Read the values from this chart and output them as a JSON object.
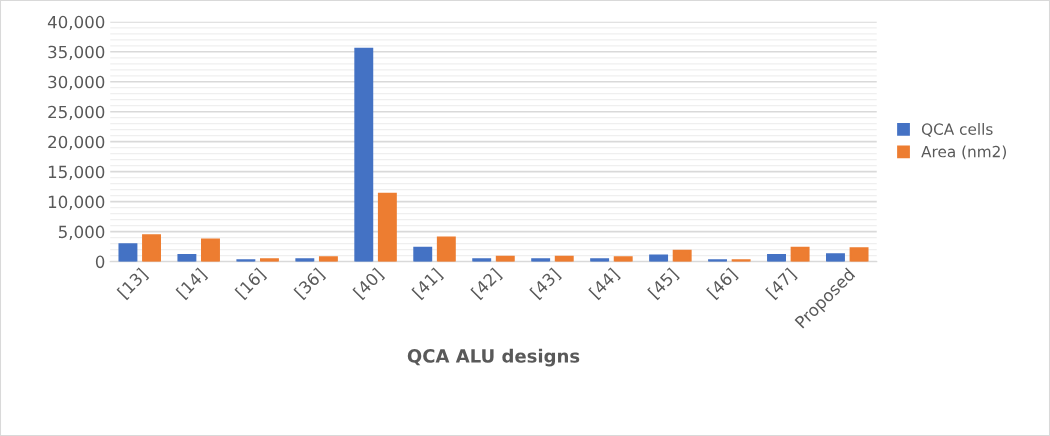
{
  "chart_data": {
    "type": "bar",
    "xlabel": "QCA ALU designs",
    "categories": [
      "[13]",
      "[14]",
      "[16]",
      "[36]",
      "[40]",
      "[41]",
      "[42]",
      "[43]",
      "[44]",
      "[45]",
      "[46]",
      "[47]",
      "Proposed"
    ],
    "series": [
      {
        "name": "QCA cells",
        "color": "#4472c4",
        "values": [
          2900,
          1100,
          200,
          400,
          35500,
          2300,
          400,
          400,
          400,
          1000,
          200,
          1100,
          1200
        ]
      },
      {
        "name": "Area (nm2)",
        "color": "#ed7d31",
        "values": [
          4400,
          3700,
          400,
          700,
          11300,
          4000,
          800,
          800,
          700,
          1800,
          200,
          2300,
          2200
        ]
      }
    ],
    "ylim": [
      0,
      40000
    ],
    "yticks": [
      {
        "value": 0,
        "label": "0"
      },
      {
        "value": 1000,
        "label": null
      },
      {
        "value": 2000,
        "label": null
      },
      {
        "value": 3000,
        "label": null
      },
      {
        "value": 4000,
        "label": null
      },
      {
        "value": 5000,
        "label": "5,000"
      },
      {
        "value": 6000,
        "label": null
      },
      {
        "value": 7000,
        "label": null
      },
      {
        "value": 8000,
        "label": null
      },
      {
        "value": 9000,
        "label": null
      },
      {
        "value": 10000,
        "label": "10,000"
      },
      {
        "value": 11000,
        "label": null
      },
      {
        "value": 12000,
        "label": null
      },
      {
        "value": 13000,
        "label": null
      },
      {
        "value": 14000,
        "label": null
      },
      {
        "value": 15000,
        "label": "15,000"
      },
      {
        "value": 16000,
        "label": null
      },
      {
        "value": 17000,
        "label": null
      },
      {
        "value": 18000,
        "label": null
      },
      {
        "value": 19000,
        "label": null
      },
      {
        "value": 20000,
        "label": "20,000"
      },
      {
        "value": 21000,
        "label": null
      },
      {
        "value": 22000,
        "label": null
      },
      {
        "value": 23000,
        "label": null
      },
      {
        "value": 24000,
        "label": null
      },
      {
        "value": 25000,
        "label": "25,000"
      },
      {
        "value": 26000,
        "label": null
      },
      {
        "value": 27000,
        "label": null
      },
      {
        "value": 28000,
        "label": null
      },
      {
        "value": 29000,
        "label": null
      },
      {
        "value": 30000,
        "label": "30,000"
      },
      {
        "value": 31000,
        "label": null
      },
      {
        "value": 32000,
        "label": null
      },
      {
        "value": 33000,
        "label": null
      },
      {
        "value": 34000,
        "label": null
      },
      {
        "value": 35000,
        "label": "35,000"
      },
      {
        "value": 36000,
        "label": null
      },
      {
        "value": 37000,
        "label": null
      },
      {
        "value": 38000,
        "label": null
      },
      {
        "value": 39000,
        "label": null
      },
      {
        "value": 40000,
        "label": "40,000"
      }
    ],
    "grid": "y",
    "legend": "right"
  }
}
